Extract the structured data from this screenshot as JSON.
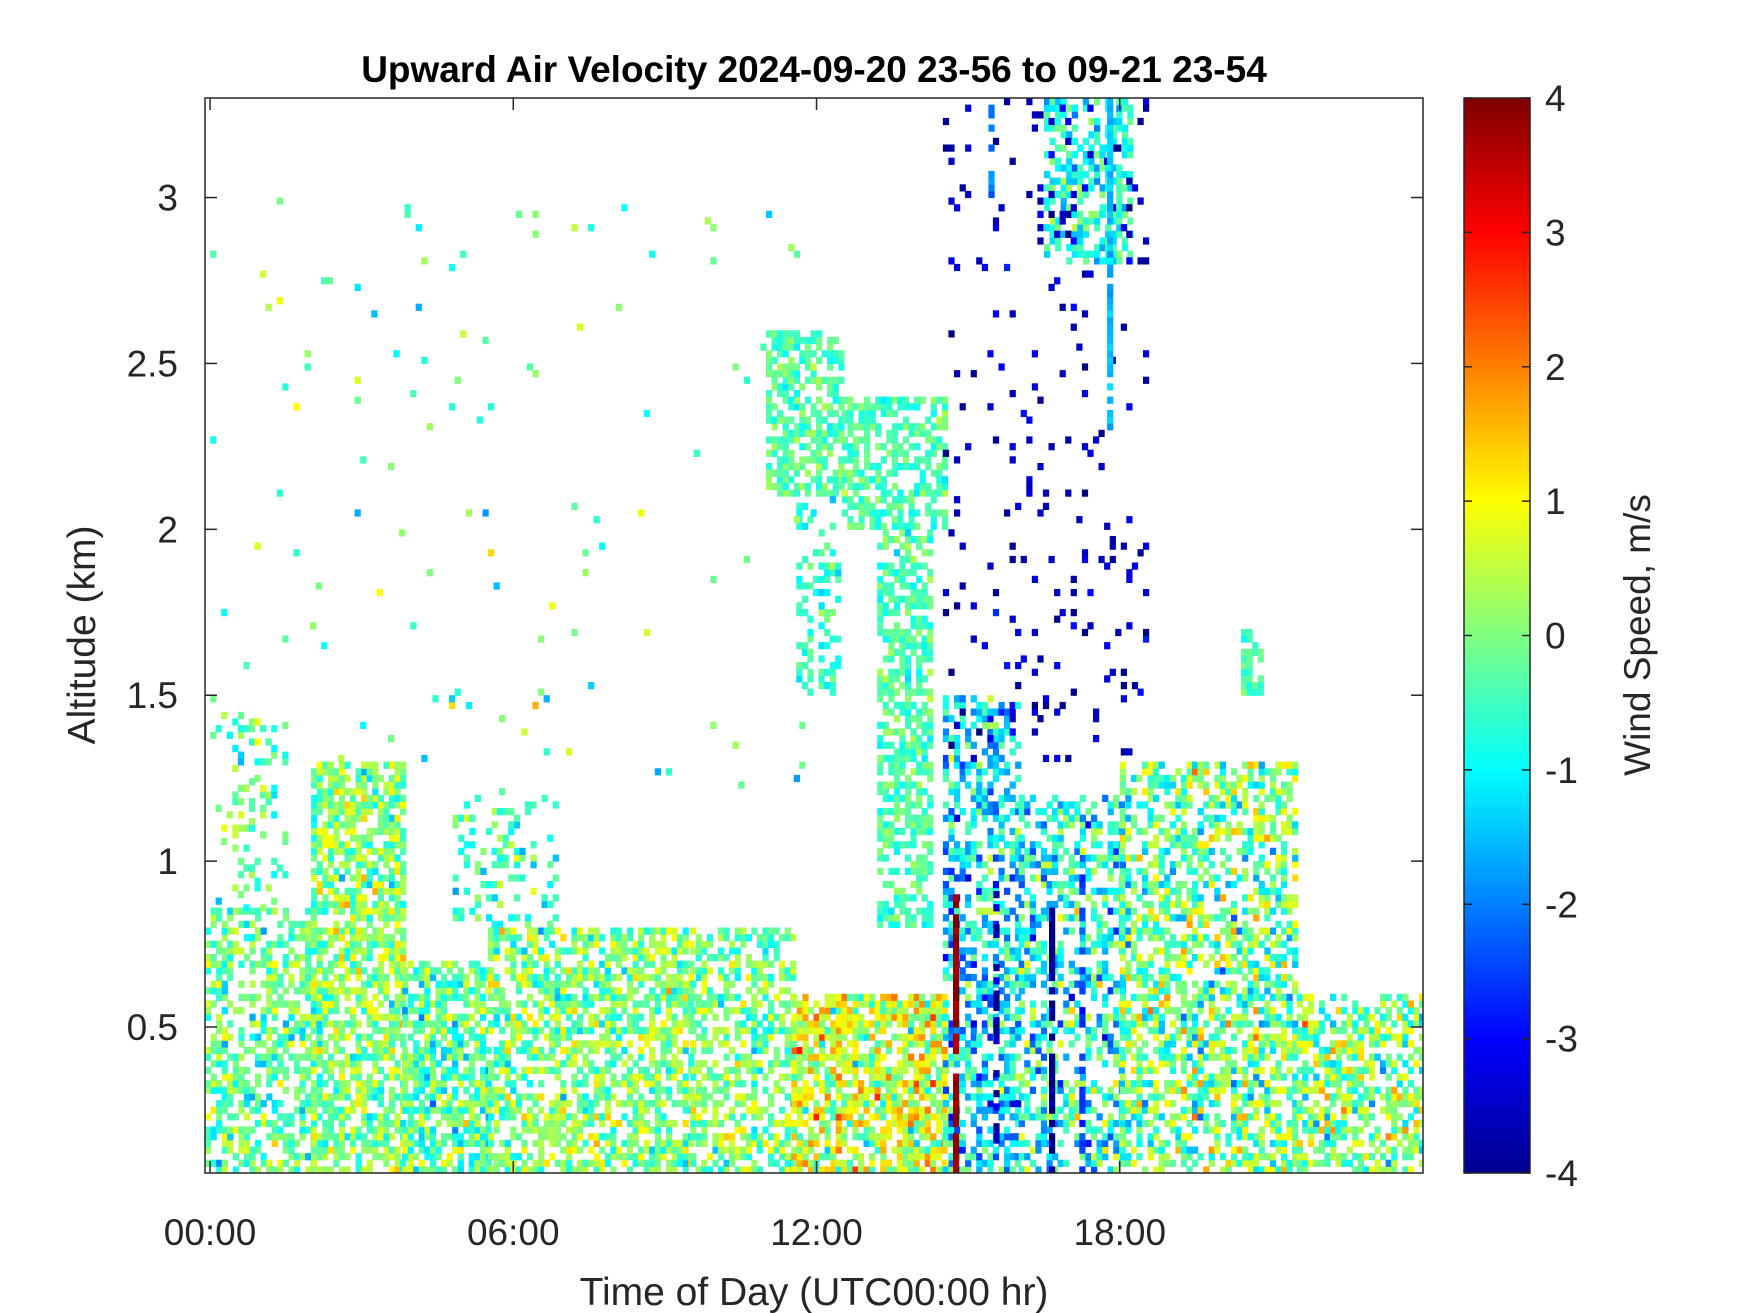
{
  "chart_data": {
    "type": "heatmap",
    "title": "Upward Air Velocity 2024-09-20 23-56 to 09-21 23-54",
    "xlabel": "Time of Day (UTC00:00 hr)",
    "ylabel": "Altitude (km)",
    "x_unit": "hours",
    "xlim": [
      -0.1,
      24.0
    ],
    "ylim": [
      0.06,
      3.3
    ],
    "x_ticks": [
      0,
      6,
      12,
      18
    ],
    "x_tick_labels": [
      "00:00",
      "06:00",
      "12:00",
      "18:00"
    ],
    "y_ticks": [
      0.5,
      1,
      1.5,
      2,
      2.5,
      3
    ],
    "y_tick_labels": [
      "0.5",
      "1",
      "1.5",
      "2",
      "2.5",
      "3"
    ],
    "colorbar": {
      "label": "Wind Speed, m/s",
      "colormap": "jet",
      "clim": [
        -4,
        4
      ],
      "ticks": [
        4,
        3,
        2,
        1,
        0,
        -1,
        -2,
        -3,
        -4
      ],
      "tick_labels": [
        "4",
        "3",
        "2",
        "1",
        "0",
        "-1",
        "-2",
        "-3",
        "-4"
      ]
    },
    "cell_size": {
      "dx_hours": 0.11,
      "dy_km": 0.02
    },
    "regions": [
      {
        "x": [
          -0.1,
          2.2
        ],
        "y": [
          0.06,
          0.85
        ],
        "density": 0.55,
        "mean": -0.2,
        "spread": 0.9
      },
      {
        "x": [
          0.0,
          1.5
        ],
        "y": [
          0.85,
          1.45
        ],
        "density": 0.18,
        "mean": -0.3,
        "spread": 0.8
      },
      {
        "x": [
          2.0,
          3.8
        ],
        "y": [
          0.06,
          1.3
        ],
        "density": 0.7,
        "mean": 0.1,
        "spread": 0.9
      },
      {
        "x": [
          3.8,
          5.5
        ],
        "y": [
          0.06,
          0.7
        ],
        "density": 0.7,
        "mean": -0.3,
        "spread": 1.0
      },
      {
        "x": [
          4.8,
          6.8
        ],
        "y": [
          0.8,
          1.2
        ],
        "density": 0.22,
        "mean": -0.5,
        "spread": 0.8
      },
      {
        "x": [
          5.5,
          9.5
        ],
        "y": [
          0.06,
          0.8
        ],
        "density": 0.6,
        "mean": 0.0,
        "spread": 0.9
      },
      {
        "x": [
          9.5,
          11.5
        ],
        "y": [
          0.06,
          0.8
        ],
        "density": 0.5,
        "mean": 0.0,
        "spread": 0.9
      },
      {
        "x": [
          11.5,
          14.5
        ],
        "y": [
          0.06,
          0.6
        ],
        "density": 0.75,
        "mean": 0.6,
        "spread": 1.2
      },
      {
        "x": [
          11.0,
          12.5
        ],
        "y": [
          2.1,
          2.6
        ],
        "density": 0.6,
        "mean": -0.3,
        "spread": 0.5
      },
      {
        "x": [
          12.5,
          14.5
        ],
        "y": [
          2.0,
          2.4
        ],
        "density": 0.6,
        "mean": -0.4,
        "spread": 0.5
      },
      {
        "x": [
          11.6,
          12.4
        ],
        "y": [
          1.5,
          2.1
        ],
        "density": 0.3,
        "mean": -0.6,
        "spread": 0.5
      },
      {
        "x": [
          13.2,
          14.2
        ],
        "y": [
          0.8,
          2.0
        ],
        "density": 0.6,
        "mean": -0.4,
        "spread": 0.5
      },
      {
        "x": [
          14.5,
          16.0
        ],
        "y": [
          0.06,
          1.5
        ],
        "density": 0.5,
        "mean": -1.2,
        "spread": 1.3
      },
      {
        "x": [
          16.0,
          18.0
        ],
        "y": [
          0.06,
          1.2
        ],
        "density": 0.45,
        "mean": -0.8,
        "spread": 1.3
      },
      {
        "x": [
          16.5,
          18.2
        ],
        "y": [
          2.8,
          3.3
        ],
        "density": 0.55,
        "mean": -0.8,
        "spread": 0.8
      },
      {
        "x": [
          18.0,
          21.5
        ],
        "y": [
          0.06,
          1.3
        ],
        "density": 0.55,
        "mean": -0.1,
        "spread": 1.2
      },
      {
        "x": [
          21.5,
          24.0
        ],
        "y": [
          0.06,
          0.6
        ],
        "density": 0.55,
        "mean": 0.0,
        "spread": 1.2
      },
      {
        "x": [
          20.4,
          20.8
        ],
        "y": [
          1.5,
          1.7
        ],
        "density": 0.5,
        "mean": -0.3,
        "spread": 0.4
      },
      {
        "x": [
          0.0,
          12.0
        ],
        "y": [
          1.2,
          3.0
        ],
        "density": 0.012,
        "mean": -0.2,
        "spread": 1.0
      },
      {
        "x": [
          14.5,
          18.5
        ],
        "y": [
          1.3,
          3.3
        ],
        "density": 0.05,
        "mean": -3.5,
        "spread": 0.5
      }
    ],
    "columns": [
      {
        "x": 14.7,
        "y": [
          0.06,
          0.9
        ],
        "density": 0.9,
        "value": 3.8
      },
      {
        "x": 16.6,
        "y": [
          0.06,
          0.85
        ],
        "density": 0.8,
        "value": -3.9
      },
      {
        "x": 15.5,
        "y": [
          0.15,
          0.9
        ],
        "density": 0.5,
        "value": -3.6
      },
      {
        "x": 17.2,
        "y": [
          0.06,
          0.95
        ],
        "density": 0.6,
        "value": -2.5
      },
      {
        "x": 17.75,
        "y": [
          2.3,
          3.3
        ],
        "density": 0.8,
        "value": -1.5
      },
      {
        "x": 15.4,
        "y": [
          3.0,
          3.3
        ],
        "density": 0.6,
        "value": -2.0
      }
    ]
  }
}
